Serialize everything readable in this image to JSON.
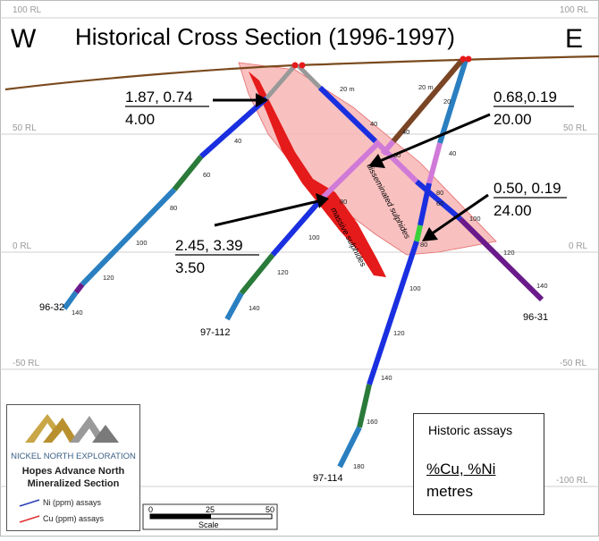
{
  "header": {
    "west": "W",
    "east": "E",
    "title": "Historical Cross Section (1996-1997)"
  },
  "rl_labels": [
    "100 RL",
    "50 RL",
    "0 RL",
    "-50 RL",
    "-100 RL"
  ],
  "holes": [
    {
      "id": "96-32",
      "depth_ticks": [
        "20 m",
        "40",
        "60",
        "80",
        "100",
        "120",
        "140"
      ]
    },
    {
      "id": "97-112",
      "depth_ticks": [
        "80",
        "100",
        "120",
        "140"
      ]
    },
    {
      "id": "96-31",
      "depth_ticks": [
        "20 m",
        "40",
        "60",
        "80",
        "100",
        "120",
        "140"
      ]
    },
    {
      "id": "97-114",
      "depth_ticks": [
        "20",
        "40",
        "60",
        "80",
        "100",
        "120",
        "140",
        "160",
        "180"
      ]
    },
    {
      "id": "brown-hole",
      "depth_ticks": [
        "20 m",
        "40"
      ]
    }
  ],
  "zones": {
    "disseminated": "disseminated sulphides",
    "massive": "massive sulphides"
  },
  "annotations": [
    {
      "values": "1.87, 0.74",
      "length": "4.00"
    },
    {
      "values": "0.68,0.19",
      "length": "20.00"
    },
    {
      "values": "0.50, 0.19",
      "length": "24.00"
    },
    {
      "values": "2.45, 3.39",
      "length": "3.50"
    }
  ],
  "scale": {
    "ticks": [
      "0",
      "25",
      "50"
    ],
    "label": "Scale"
  },
  "legend": {
    "company": "NICKEL NORTH EXPLORATION",
    "title_line1": "Hopes Advance North",
    "title_line2": "Mineralized Section",
    "items": [
      {
        "label": "Ni (ppm) assays",
        "color": "#2a3fb5"
      },
      {
        "label": "Cu (ppm) assays",
        "color": "#e03030"
      }
    ]
  },
  "assay_box": {
    "title": "Historic assays",
    "line1": "%Cu, %Ni",
    "line2": "metres"
  },
  "colors": {
    "topography": "#7a4a1e",
    "ore_envelope": "#f7b0b0",
    "massive": "#e51a1a",
    "hole_blue": "#1a2fe0",
    "hole_light": "#2a7fc0",
    "hole_green": "#2a7a3a",
    "hole_purple": "#6a1a8a",
    "hole_brown": "#7a4525"
  }
}
